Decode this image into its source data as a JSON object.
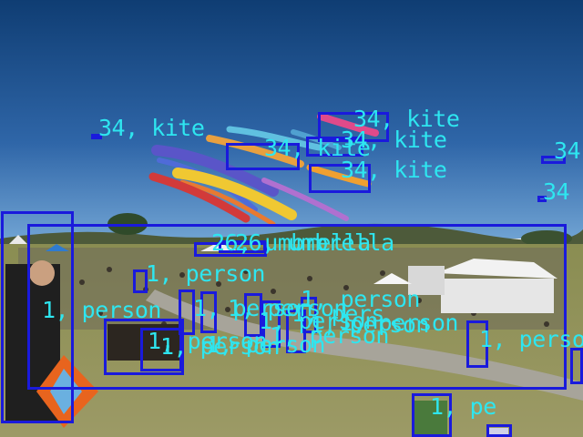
{
  "colors": {
    "box": "#1a1adc",
    "label": "#2ee6f0",
    "sky_top": "#0f3d73",
    "sky_bottom": "#5b93c9",
    "grass": "#8d8f56",
    "path": "#a7a49a"
  },
  "detections": [
    {
      "class": "kite",
      "label": "34, kite"
    },
    {
      "class": "kite",
      "label": "34, kite"
    },
    {
      "class": "kite",
      "label": "34, kite"
    },
    {
      "class": "kite",
      "label": "34, kite"
    },
    {
      "class": "kite",
      "label": "34, kite"
    },
    {
      "class": "kite",
      "label": "34"
    },
    {
      "class": "kite",
      "label": "34"
    },
    {
      "class": "umbrella",
      "label": "26, umbrella"
    },
    {
      "class": "umbrella",
      "label": "26, umbrella"
    },
    {
      "class": "person",
      "label": "1, person"
    },
    {
      "class": "person",
      "label": "1, person"
    },
    {
      "class": "person",
      "label": "1, person"
    },
    {
      "class": "person",
      "label": "1, person"
    },
    {
      "class": "person",
      "label": "1, person"
    },
    {
      "class": "person",
      "label": "1, person"
    },
    {
      "class": "person",
      "label": "1, person"
    },
    {
      "class": "person",
      "label": "1, person"
    },
    {
      "class": "person",
      "label": "1, person"
    },
    {
      "class": "person",
      "label": "1, person"
    },
    {
      "class": "person",
      "label": "1, person"
    },
    {
      "class": "person",
      "label": "1, person"
    },
    {
      "class": "person",
      "label": "1, pers"
    },
    {
      "class": "person",
      "label": "1, person"
    },
    {
      "class": "person",
      "label": "1, pe"
    }
  ]
}
